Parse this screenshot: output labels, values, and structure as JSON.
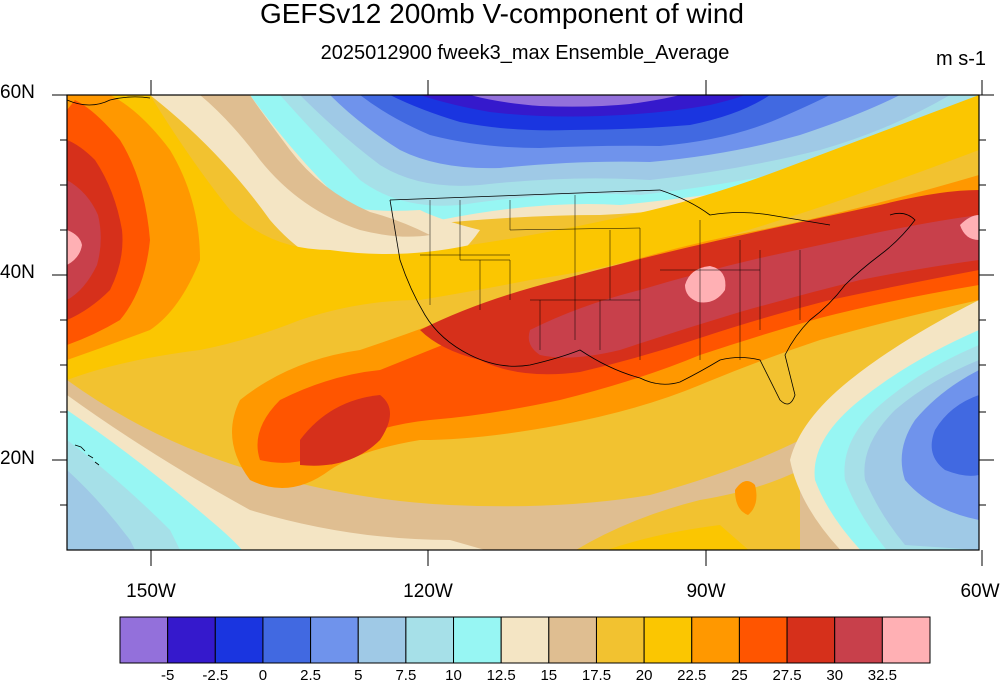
{
  "title": "GEFSv12 200mb V-component of wind",
  "subtitle": "2025012900 fweek3_max Ensemble_Average",
  "units": "m s-1",
  "lat_labels": [
    "60N",
    "40N",
    "20N"
  ],
  "lon_labels": [
    "150W",
    "120W",
    "90W",
    "60W"
  ],
  "colorbar": {
    "labels": [
      "-5",
      "-2.5",
      "0",
      "2.5",
      "5",
      "7.5",
      "10",
      "12.5",
      "15",
      "17.5",
      "20",
      "22.5",
      "25",
      "27.5",
      "30",
      "32.5"
    ],
    "colors": [
      "#9370db",
      "#3519cc",
      "#1a35e0",
      "#4169e1",
      "#6f93ec",
      "#9fc9e6",
      "#a6e0e8",
      "#97f6f3",
      "#f4e5c4",
      "#dfbe91",
      "#f2c230",
      "#fbc601",
      "#ff9800",
      "#ff5500",
      "#d6301b",
      "#c8404b",
      "#ffb0b4"
    ]
  },
  "map_colors": {
    "land_border": "#000000",
    "frame": "#000000"
  }
}
